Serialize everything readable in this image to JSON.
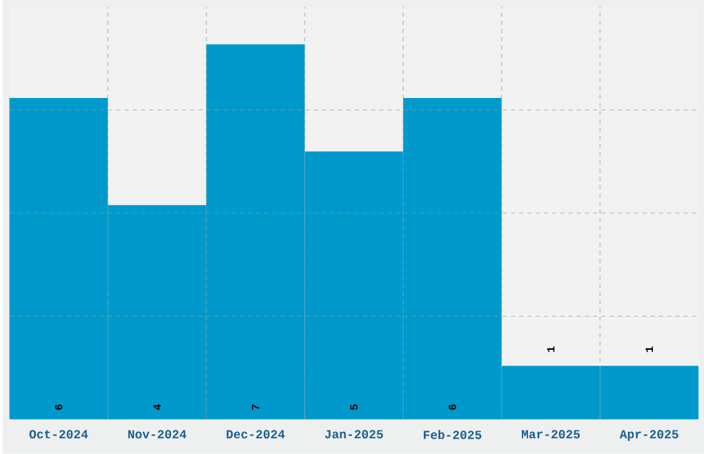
{
  "chart_data": {
    "type": "bar",
    "categories": [
      "Oct-2024",
      "Nov-2024",
      "Dec-2024",
      "Jan-2025",
      "Feb-2025",
      "Mar-2025",
      "Apr-2025"
    ],
    "values": [
      6,
      4,
      7,
      5,
      6,
      1,
      1
    ],
    "color": "#0099cc",
    "ylim": [
      0,
      7.7
    ],
    "yticks": [
      {
        "value": 1.925,
        "label": null
      },
      {
        "value": 3.85,
        "label": null
      },
      {
        "value": 5.775,
        "label": null
      }
    ],
    "grid": true,
    "data_labels": true,
    "tick_labels": "x"
  }
}
